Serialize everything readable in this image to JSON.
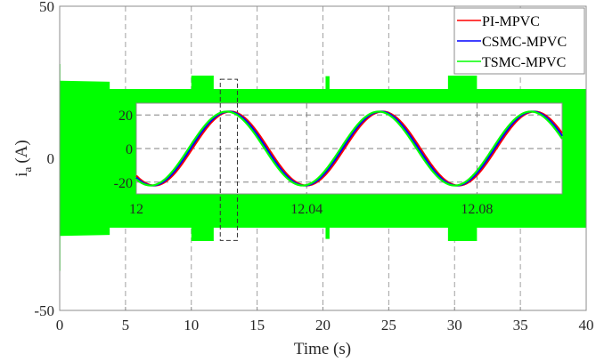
{
  "chart_data": {
    "type": "line",
    "title": "",
    "xlabel": "Time (s)",
    "ylabel_main": "i",
    "ylabel_sub": "a",
    "ylabel_unit": "(A)",
    "xlim": [
      0,
      40
    ],
    "ylim": [
      -50,
      50
    ],
    "xticks": [
      0,
      5,
      10,
      15,
      20,
      25,
      30,
      35,
      40
    ],
    "xtick_labels": [
      "0",
      "5",
      "10",
      "15",
      "20",
      "25",
      "30",
      "35",
      "40"
    ],
    "yticks": [
      50,
      0,
      -50
    ],
    "ytick_labels": [
      "50",
      "0",
      "-50"
    ],
    "grid": true,
    "legend_position": "upper right",
    "series": [
      {
        "name": "PI-MPVC",
        "color": "#ff0000"
      },
      {
        "name": "CSMC-MPVC",
        "color": "#0000ff"
      },
      {
        "name": "TSMC-MPVC",
        "color": "#00ff00"
      }
    ],
    "envelope_note": "Main plot shows dense 3-phase current oscillation (TSMC-MPVC drawn on top, visible as solid green band); envelope amplitude over time",
    "envelope": {
      "t": [
        0,
        0.05,
        0.05,
        3.8,
        3.8,
        10.0,
        10.0,
        11.7,
        11.7,
        20.2,
        20.2,
        20.5,
        20.5,
        29.5,
        29.5,
        31.7,
        31.7,
        40
      ],
      "upper": [
        31,
        31,
        25.5,
        25.2,
        22.8,
        22.8,
        27.2,
        27.2,
        22.8,
        22.8,
        27,
        27,
        22.8,
        22.8,
        27.2,
        27.2,
        22.8,
        22.8
      ],
      "lower": [
        -37,
        -37,
        -25.5,
        -25.2,
        -22.8,
        -22.8,
        -27.2,
        -27.2,
        -22.8,
        -22.8,
        -26.5,
        -26.5,
        -22.8,
        -22.8,
        -27.2,
        -27.2,
        -22.8,
        -22.8
      ]
    },
    "zoom_box": {
      "t0": 12.2,
      "t1": 13.5,
      "y0": -27,
      "y1": 26
    },
    "inset": {
      "xlim": [
        12,
        12.1
      ],
      "ylim": [
        -27,
        27
      ],
      "xticks": [
        12,
        12.04,
        12.08
      ],
      "xtick_labels": [
        "12",
        "12.04",
        "12.08"
      ],
      "yticks": [
        20,
        0,
        -20
      ],
      "ytick_labels": [
        "20",
        "0",
        "-20"
      ],
      "amplitude": 22,
      "period_s": 0.0357,
      "phase_peak_t": 12.0212,
      "series_lag_s": [
        0.0009,
        0.00045,
        0
      ]
    }
  }
}
